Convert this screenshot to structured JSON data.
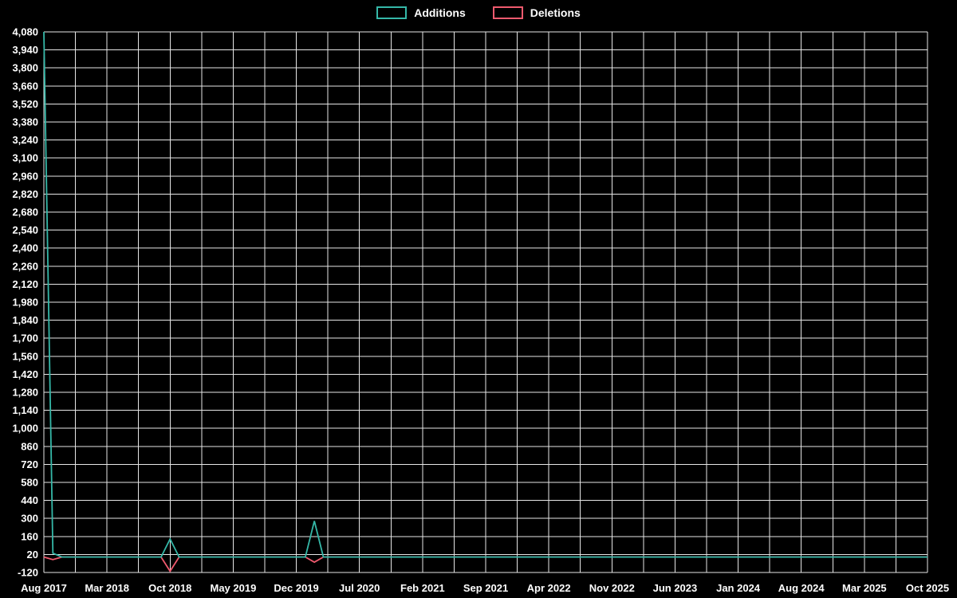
{
  "legend": {
    "items": [
      {
        "label": "Additions",
        "color": "#35b8a8"
      },
      {
        "label": "Deletions",
        "color": "#ef5a6e"
      }
    ]
  },
  "colors": {
    "background": "#000000",
    "grid": "#e6e6e6",
    "axis_text": "#ffffff",
    "additions": "#35b8a8",
    "deletions": "#ef5a6e"
  },
  "chart_data": {
    "type": "line",
    "title": "",
    "xlabel": "",
    "ylabel": "",
    "grid": true,
    "legend_position": "top-center",
    "ylim": [
      -120,
      4080
    ],
    "y_ticks": [
      4080,
      3940,
      3800,
      3660,
      3520,
      3380,
      3240,
      3100,
      2960,
      2820,
      2680,
      2540,
      2400,
      2260,
      2120,
      1980,
      1840,
      1700,
      1560,
      1420,
      1280,
      1140,
      1000,
      860,
      720,
      580,
      440,
      300,
      160,
      20,
      -120
    ],
    "y_tick_labels": [
      "4,080",
      "3,940",
      "3,800",
      "3,660",
      "3,520",
      "3,380",
      "3,240",
      "3,100",
      "2,960",
      "2,820",
      "2,680",
      "2,540",
      "2,400",
      "2,260",
      "2,120",
      "1,980",
      "1,840",
      "1,700",
      "1,560",
      "1,420",
      "1,280",
      "1,140",
      "1,000",
      "860",
      "720",
      "580",
      "440",
      "300",
      "160",
      "20",
      "-120"
    ],
    "x_tick_labels": [
      "Aug 2017",
      "Mar 2018",
      "Oct 2018",
      "May 2019",
      "Dec 2019",
      "Jul 2020",
      "Feb 2021",
      "Sep 2021",
      "Apr 2022",
      "Nov 2022",
      "Jun 2023",
      "Jan 2024",
      "Aug 2024",
      "Mar 2025",
      "Oct 2025"
    ],
    "x_range": {
      "start": "Aug 2017",
      "end": "Oct 2025",
      "months_span": 98
    },
    "vertical_gridline_count": 29,
    "series": [
      {
        "name": "Additions",
        "color": "#35b8a8",
        "baseline": 0,
        "points": [
          {
            "month_index": 0,
            "date": "Aug 2017",
            "value": 4080
          },
          {
            "month_index": 1,
            "date": "Sep 2017",
            "value": 30
          },
          {
            "month_index": 14,
            "date": "Oct 2018",
            "value": 140
          },
          {
            "month_index": 30,
            "date": "Feb 2020",
            "value": 280
          }
        ]
      },
      {
        "name": "Deletions",
        "color": "#ef5a6e",
        "baseline": 0,
        "points": [
          {
            "month_index": 1,
            "date": "Sep 2017",
            "value": -20
          },
          {
            "month_index": 14,
            "date": "Oct 2018",
            "value": -110
          },
          {
            "month_index": 30,
            "date": "Feb 2020",
            "value": -40
          }
        ]
      }
    ]
  }
}
